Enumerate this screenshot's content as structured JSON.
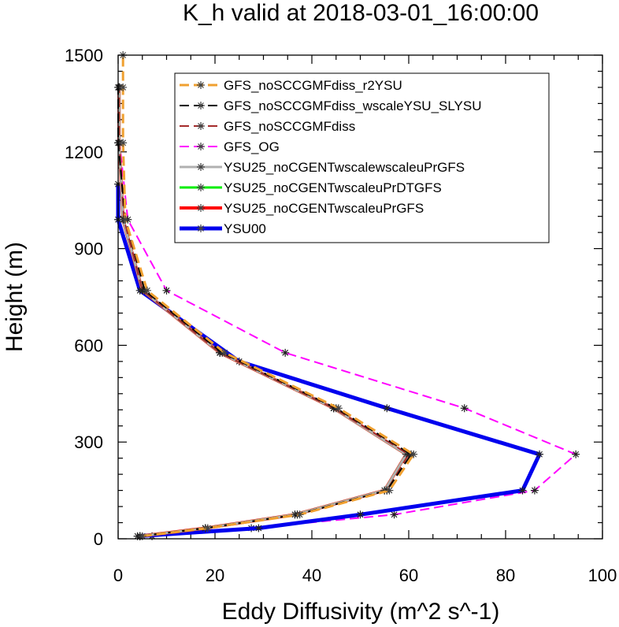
{
  "chart_data": {
    "type": "line",
    "title": "K_h valid at 2018-03-01_16:00:00",
    "xlabel": "Eddy Diffusivity (m^2 s^-1)",
    "ylabel": "Height (m)",
    "xlim": [
      0,
      100
    ],
    "ylim": [
      0,
      1500
    ],
    "xticks": [
      0,
      20,
      40,
      60,
      80,
      100
    ],
    "xtick_labels": [
      "0",
      "20",
      "40",
      "60",
      "80",
      "100"
    ],
    "yticks": [
      0,
      300,
      600,
      900,
      1200,
      1500
    ],
    "ytick_labels": [
      "0",
      "300",
      "600",
      "900",
      "1200",
      "1500"
    ],
    "grid": false,
    "legend_position": "top-right",
    "series": [
      {
        "name": "GFS_noSCCGMFdiss_r2YSU",
        "color": "#f0a030",
        "dash": "dash",
        "width": 3,
        "x": [
          5,
          18.5,
          37.5,
          56,
          61,
          45.5,
          22,
          6,
          1.5,
          1,
          1,
          1
        ],
        "y": [
          8,
          33,
          75,
          150,
          262,
          405,
          577,
          770,
          990,
          1228,
          1400,
          1500
        ]
      },
      {
        "name": "GFS_noSCCGMFdiss_wscaleYSU_SLYSU",
        "color": "#000000",
        "dash": "dash",
        "width": 2,
        "x": [
          4.5,
          18,
          37,
          55.5,
          60.5,
          45,
          21.5,
          5.5,
          1.5,
          0,
          0
        ],
        "y": [
          8,
          33,
          75,
          150,
          262,
          405,
          577,
          770,
          990,
          1228,
          1400
        ]
      },
      {
        "name": "GFS_noSCCGMFdiss",
        "color": "#a52a2a",
        "dash": "dash",
        "width": 2,
        "x": [
          4.5,
          18,
          37,
          55.5,
          60,
          44.5,
          21,
          5,
          1.2,
          0.2,
          0.2
        ],
        "y": [
          8,
          33,
          75,
          150,
          262,
          405,
          577,
          770,
          990,
          1228,
          1400
        ]
      },
      {
        "name": "GFS_OG",
        "color": "#ff00ff",
        "dash": "dash",
        "width": 2,
        "x": [
          7,
          27.5,
          57,
          86,
          94.5,
          71.5,
          34.5,
          10,
          2,
          0.3,
          0.3
        ],
        "y": [
          8,
          33,
          75,
          150,
          262,
          405,
          577,
          770,
          990,
          1228,
          1400
        ]
      },
      {
        "name": "YSU25_noCGENTwscalewscaleuPrGFS",
        "color": "#b0b0b0",
        "dash": "solid",
        "width": 3,
        "x": [
          4.5,
          18,
          36.5,
          55,
          59.5,
          44.5,
          21,
          5,
          1,
          0.2,
          0.2
        ],
        "y": [
          8,
          33,
          75,
          150,
          262,
          405,
          577,
          770,
          990,
          1228,
          1400
        ]
      },
      {
        "name": "YSU25_noCGENTwscaleuPrDTGFS",
        "color": "#00ee00",
        "dash": "solid",
        "width": 3,
        "x": [
          4.5,
          18,
          36.5,
          55,
          59.5,
          44.5,
          21,
          5,
          1,
          0.2,
          0.2
        ],
        "y": [
          8,
          33,
          75,
          150,
          262,
          405,
          577,
          770,
          990,
          1228,
          1400
        ]
      },
      {
        "name": "YSU25_noCGENTwscaleuPrGFS",
        "color": "#ff0000",
        "dash": "solid",
        "width": 4,
        "x": [
          4.5,
          18,
          36.5,
          55,
          59.5,
          44.5,
          21,
          5,
          1,
          0.2,
          0.2
        ],
        "y": [
          8,
          33,
          75,
          150,
          262,
          405,
          577,
          770,
          990,
          1228,
          1400
        ]
      },
      {
        "name": "YSU00",
        "color": "#0000ee",
        "dash": "solid",
        "width": 5,
        "x": [
          4,
          29,
          50,
          83.5,
          87,
          55.5,
          25,
          4.5,
          0,
          0
        ],
        "y": [
          8,
          33,
          75,
          150,
          262,
          405,
          550,
          770,
          990,
          1100
        ]
      }
    ]
  }
}
